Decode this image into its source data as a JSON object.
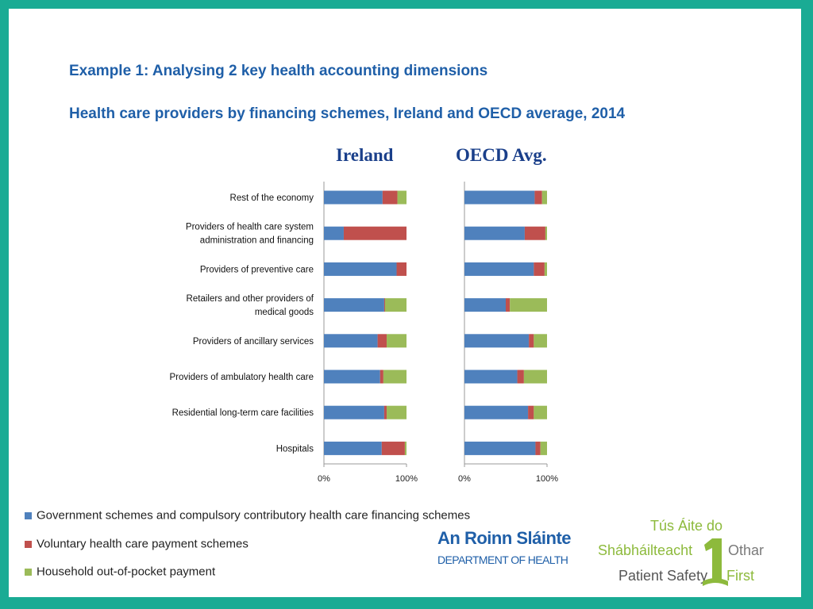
{
  "title": "Example 1: Analysing 2 key health accounting dimensions",
  "subtitle": "Health care providers by financing schemes, Ireland and OECD average, 2014",
  "colors": {
    "government": "#4f81bd",
    "voluntary": "#c0504d",
    "household": "#9bbb59",
    "frame": "#1aab94",
    "heading": "#1f5fa8"
  },
  "chart_data": {
    "type": "bar",
    "stacked": true,
    "orientation": "horizontal",
    "xlim": [
      0,
      100
    ],
    "categories": [
      "Rest of the economy",
      "Providers of health care system administration and financing",
      "Providers of preventive care",
      "Retailers and other providers of medical goods",
      "Providers of ancillary services",
      "Providers of ambulatory health care",
      "Residential long-term care facilities",
      "Hospitals"
    ],
    "category_lines": [
      [
        "Rest of the economy"
      ],
      [
        "Providers of health care system",
        "administration and financing"
      ],
      [
        "Providers of preventive care"
      ],
      [
        "Retailers and other providers of",
        "medical goods"
      ],
      [
        "Providers of ancillary services"
      ],
      [
        "Providers of ambulatory health care"
      ],
      [
        "Residential long-term care facilities"
      ],
      [
        "Hospitals"
      ]
    ],
    "panels": [
      {
        "title": "Ireland",
        "tick_labels": [
          "0%",
          "100%"
        ],
        "series": [
          {
            "name": "Government schemes and compulsory contributory health care financing schemes",
            "values": [
              71,
              24,
              88,
              73,
              65,
              68,
              73,
              70
            ]
          },
          {
            "name": "Voluntary health care payment schemes",
            "values": [
              18,
              76,
              12,
              1,
              11,
              4,
              3,
              28
            ]
          },
          {
            "name": "Household out-of-pocket payment",
            "values": [
              11,
              0,
              0,
              26,
              24,
              28,
              24,
              2
            ]
          }
        ]
      },
      {
        "title": "OECD Avg.",
        "tick_labels": [
          "0%",
          "100%"
        ],
        "series": [
          {
            "name": "Government schemes and compulsory contributory health care financing schemes",
            "values": [
              85,
              73,
              84,
              50,
              78,
              64,
              77,
              86
            ]
          },
          {
            "name": "Voluntary health care payment schemes",
            "values": [
              9,
              25,
              13,
              5,
              6,
              8,
              7,
              6
            ]
          },
          {
            "name": "Household out-of-pocket payment",
            "values": [
              6,
              2,
              3,
              45,
              16,
              28,
              16,
              8
            ]
          }
        ]
      }
    ],
    "legend": [
      "Government schemes and compulsory contributory health care financing schemes",
      "Voluntary health care payment schemes",
      "Household out-of-pocket payment"
    ],
    "legend_position": "bottom-left"
  },
  "logos": {
    "doh_irish": "An Roinn Sláinte",
    "doh_english": "DEPARTMENT OF HEALTH",
    "ps_line1": "Tús Áite do",
    "ps_line2": "Shábháilteacht",
    "ps_line3": "Othar",
    "ps_line4": "Patient Safety",
    "ps_line5": "First"
  }
}
